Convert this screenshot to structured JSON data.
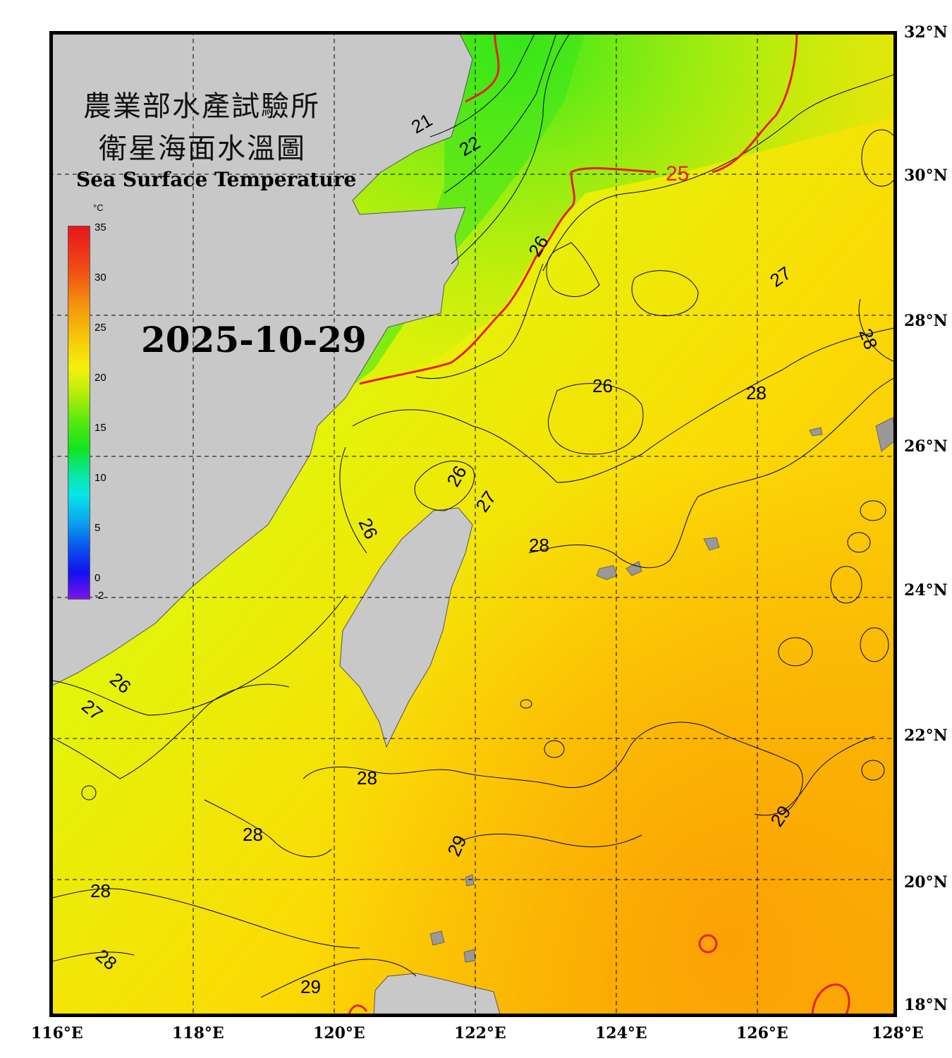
{
  "title": {
    "zh_line1": "農業部水產試驗所",
    "zh_line2": "衛星海面水溫圖",
    "en": "Sea Surface Temperature"
  },
  "date": "2025-10-29",
  "colorbar": {
    "unit": "°C",
    "ticks": [
      "35",
      "30",
      "25",
      "20",
      "15",
      "10",
      "5",
      "0",
      "-2"
    ],
    "min": -2,
    "max": 35
  },
  "axes": {
    "lat_labels": [
      "32°N",
      "30°N",
      "28°N",
      "26°N",
      "24°N",
      "22°N",
      "20°N",
      "18°N"
    ],
    "lon_labels": [
      "116°E",
      "118°E",
      "120°E",
      "122°E",
      "124°E",
      "126°E",
      "128°E"
    ],
    "lat_range": [
      18,
      32
    ],
    "lon_range": [
      116,
      128
    ]
  },
  "contour_labels": [
    "21",
    "22",
    "25",
    "26",
    "27",
    "26",
    "26",
    "27",
    "28",
    "28",
    "26",
    "27",
    "26",
    "28",
    "28",
    "28",
    "28",
    "29",
    "29",
    "29",
    "28",
    "28"
  ],
  "colors": {
    "land": "#c8c8c8",
    "isotherm_25": "#e8201c",
    "contour": "#000000",
    "grid": "#000000"
  }
}
